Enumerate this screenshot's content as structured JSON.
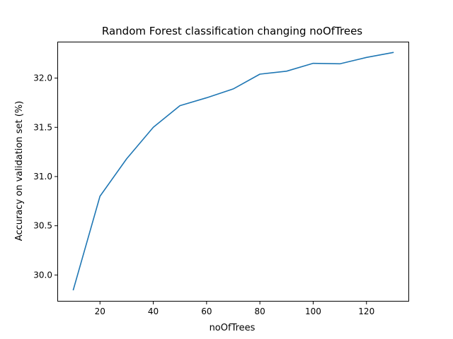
{
  "chart_data": {
    "type": "line",
    "title": "Random Forest classification changing noOfTrees",
    "xlabel": "noOfTrees",
    "ylabel": "Accuracy on validation set (%)",
    "x": [
      10,
      20,
      30,
      40,
      50,
      60,
      70,
      80,
      90,
      100,
      110,
      120,
      130
    ],
    "series": [
      {
        "values": [
          29.85,
          30.8,
          31.18,
          31.5,
          31.72,
          31.8,
          31.89,
          32.04,
          32.07,
          32.15,
          32.145,
          32.21,
          32.26
        ],
        "color": "#1f77b4"
      }
    ],
    "xlim": [
      4,
      136
    ],
    "ylim": [
      29.73,
      32.37
    ],
    "xticks": [
      20,
      40,
      60,
      80,
      100,
      120
    ],
    "yticks": [
      30.0,
      30.5,
      31.0,
      31.5,
      32.0
    ],
    "xtick_labels": [
      "20",
      "40",
      "60",
      "80",
      "100",
      "120"
    ],
    "ytick_labels": [
      "30.0",
      "30.5",
      "31.0",
      "31.5",
      "32.0"
    ],
    "grid": false,
    "legend": "none"
  }
}
